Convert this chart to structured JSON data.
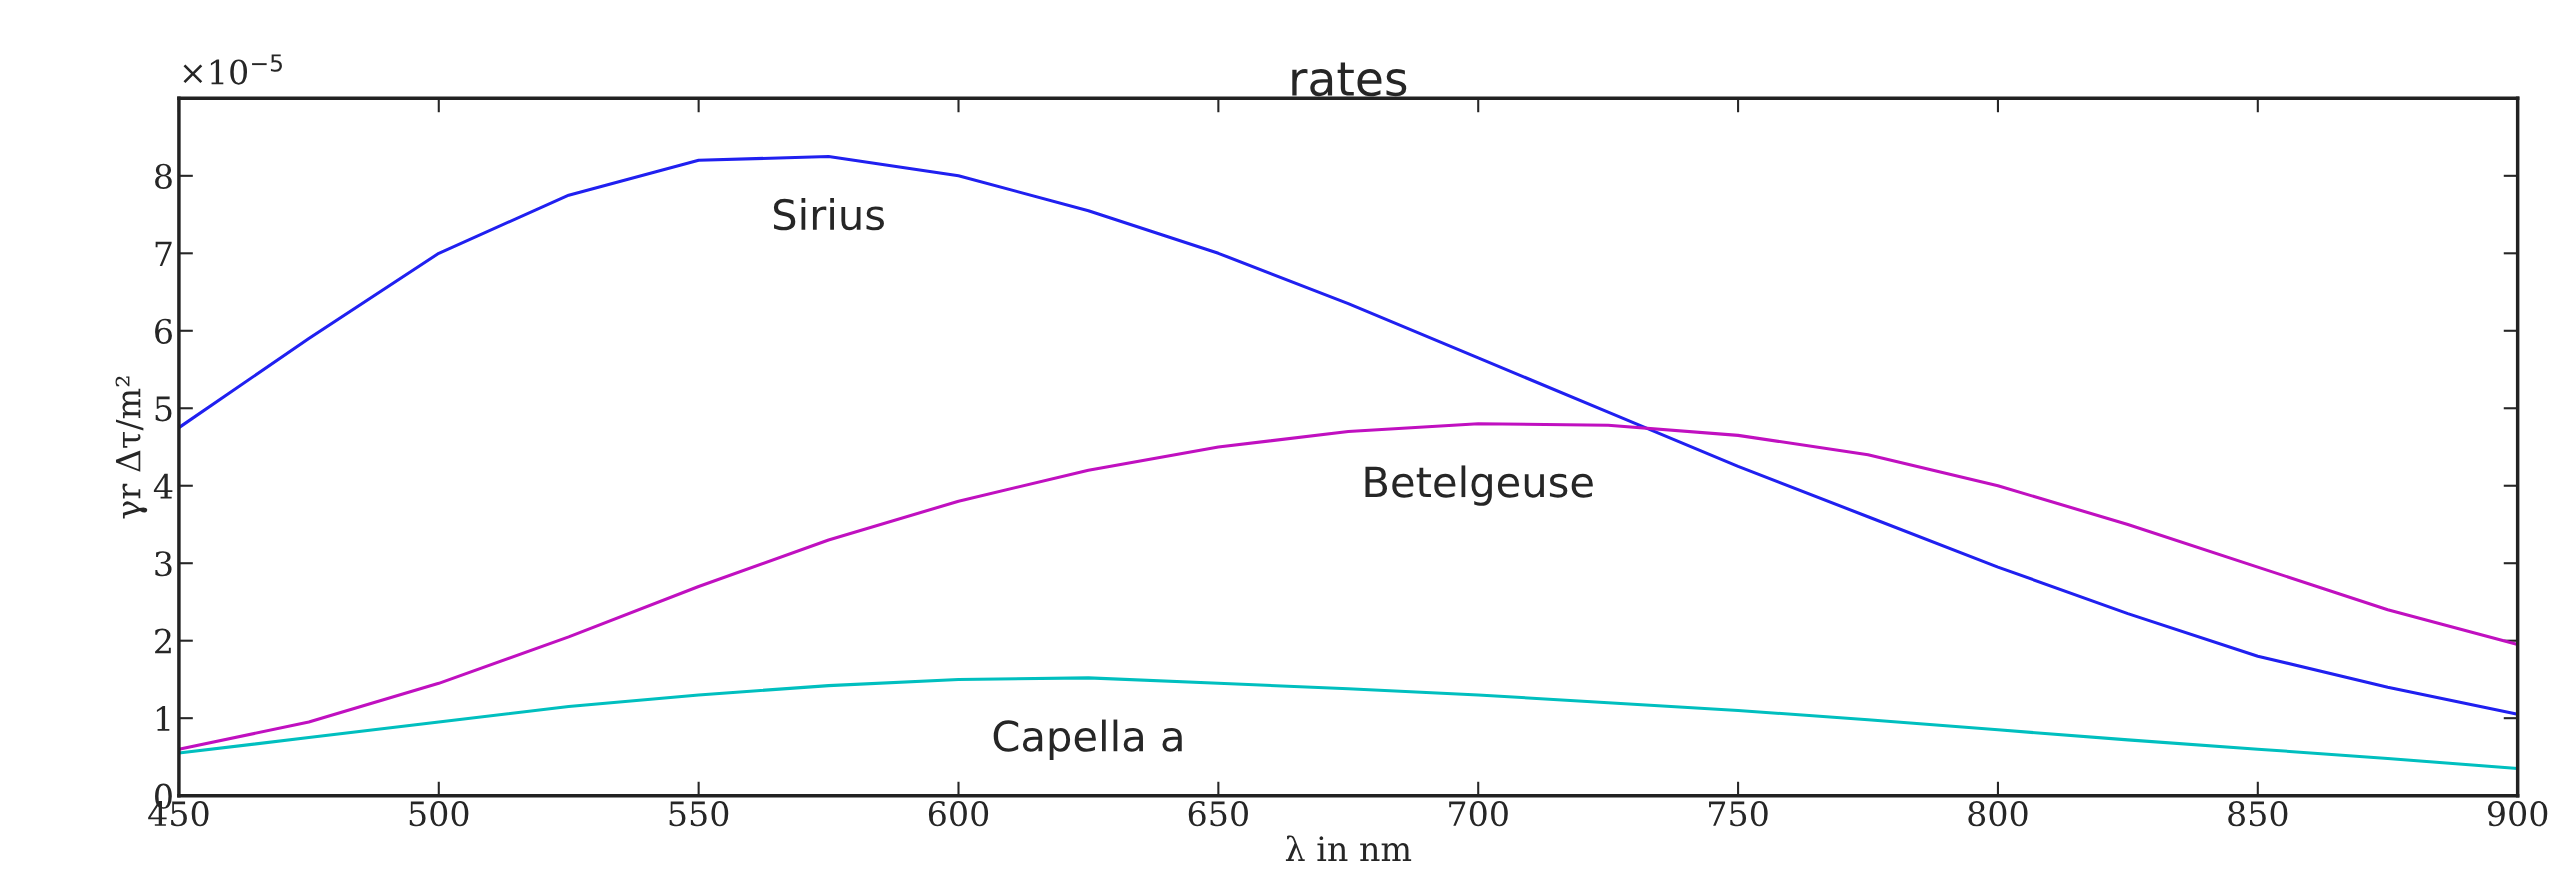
{
  "chart_data": {
    "type": "line",
    "title": "rates",
    "xlabel": "λ in nm",
    "ylabel": "γr Δτ/m²",
    "annotations": [
      "×10$^{−5}$"
    ],
    "x": [
      450,
      475,
      500,
      525,
      550,
      575,
      600,
      625,
      650,
      675,
      700,
      725,
      750,
      775,
      800,
      825,
      850,
      875,
      900
    ],
    "series": [
      {
        "name": "Sirius",
        "color": "#2020f0",
        "values": [
          4.75,
          5.9,
          7.0,
          7.75,
          8.2,
          8.25,
          8.0,
          7.55,
          7.0,
          6.35,
          5.65,
          4.95,
          4.25,
          3.6,
          2.95,
          2.35,
          1.8,
          1.4,
          1.05
        ]
      },
      {
        "name": "Betelgeuse",
        "color": "#c010c0",
        "values": [
          0.6,
          0.95,
          1.45,
          2.05,
          2.7,
          3.3,
          3.8,
          4.2,
          4.5,
          4.7,
          4.8,
          4.78,
          4.65,
          4.4,
          4.0,
          3.5,
          2.95,
          2.4,
          1.95
        ]
      },
      {
        "name": "Capella a",
        "color": "#00bfbf",
        "values": [
          0.55,
          0.75,
          0.95,
          1.15,
          1.3,
          1.42,
          1.5,
          1.52,
          1.45,
          1.38,
          1.3,
          1.2,
          1.1,
          0.98,
          0.85,
          0.72,
          0.6,
          0.48,
          0.35
        ]
      }
    ],
    "xlim": [
      450,
      900
    ],
    "ylim": [
      0,
      9
    ],
    "xticks": [
      450,
      500,
      550,
      600,
      650,
      700,
      750,
      800,
      850,
      900
    ],
    "yticks": [
      0,
      1,
      2,
      3,
      4,
      5,
      6,
      7,
      8
    ],
    "grid": false,
    "legend": false,
    "marker": "none",
    "line_style": "solid"
  }
}
